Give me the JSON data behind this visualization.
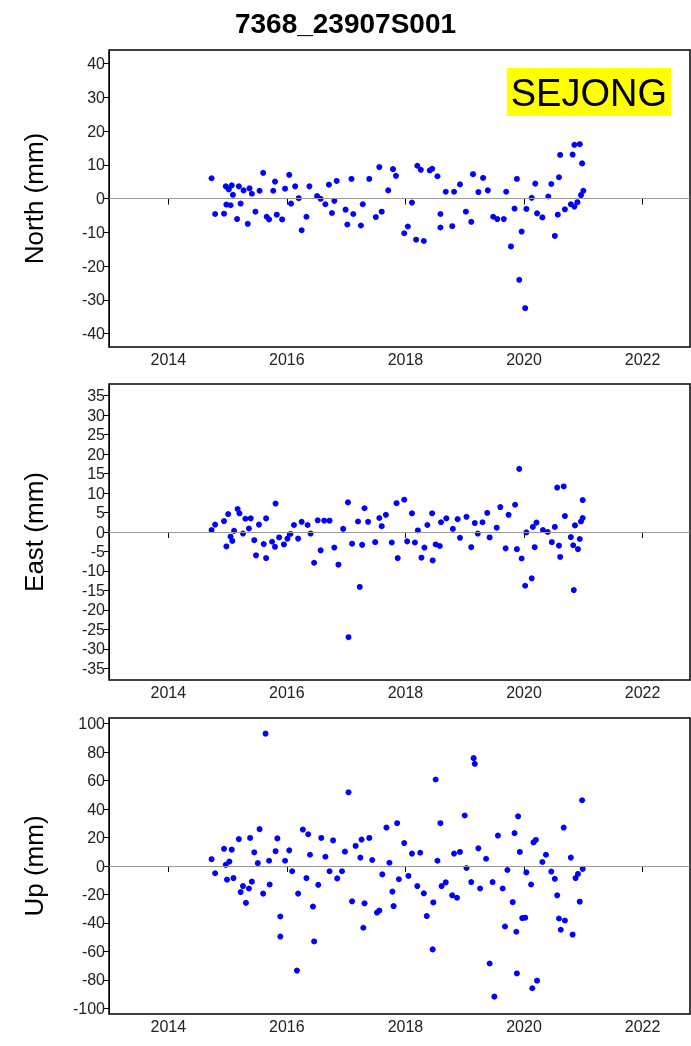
{
  "chart_data": [
    {
      "type": "scatter",
      "title": "7368_23907S001",
      "ylabel": "North (mm)",
      "annotations": [
        "SEJONG"
      ],
      "color": "#0000ff",
      "marker": "circle",
      "grid": false,
      "xlim": [
        2013,
        2022.8
      ],
      "xticks": [
        2014,
        2016,
        2018,
        2020,
        2022
      ],
      "ylim": [
        -44,
        44
      ],
      "yticks": [
        -40,
        -30,
        -20,
        -10,
        0,
        10,
        20,
        30,
        40
      ],
      "ref_lines": [
        {
          "axis": "y",
          "value": 0,
          "color": "#999999"
        }
      ],
      "x": [
        2014.73,
        2014.79,
        2014.94,
        2014.97,
        2014.98,
        2015.02,
        2015.07,
        2015.05,
        2015.09,
        2015.16,
        2015.19,
        2015.22,
        2015.27,
        2015.34,
        2015.37,
        2015.41,
        2015.47,
        2015.54,
        2015.6,
        2015.66,
        2015.7,
        2015.77,
        2015.8,
        2015.83,
        2015.92,
        2015.97,
        2016.04,
        2016.07,
        2016.14,
        2016.2,
        2016.25,
        2016.33,
        2016.38,
        2016.51,
        2016.57,
        2016.65,
        2016.71,
        2016.76,
        2016.8,
        2016.84,
        2016.99,
        2017.02,
        2017.09,
        2017.12,
        2017.25,
        2017.28,
        2017.39,
        2017.5,
        2017.56,
        2017.6,
        2017.71,
        2017.79,
        2017.84,
        2017.98,
        2018.04,
        2018.11,
        2018.18,
        2018.2,
        2018.26,
        2018.31,
        2018.41,
        2018.45,
        2018.54,
        2018.59,
        2018.59,
        2018.68,
        2018.79,
        2018.82,
        2018.92,
        2019.02,
        2019.11,
        2019.14,
        2019.23,
        2019.31,
        2019.39,
        2019.48,
        2019.55,
        2019.66,
        2019.7,
        2019.78,
        2019.84,
        2019.88,
        2019.92,
        2019.96,
        2020.02,
        2020.04,
        2020.13,
        2020.19,
        2020.22,
        2020.31,
        2020.41,
        2020.46,
        2020.52,
        2020.57,
        2020.59,
        2020.61,
        2020.69,
        2020.79,
        2020.82,
        2020.85,
        2020.85,
        2020.9,
        2020.94,
        2020.98,
        2021.0,
        2020.96
      ],
      "values": [
        6.0,
        -4.6,
        -4.5,
        3.6,
        -1.8,
        2.7,
        3.9,
        -2.0,
        1.1,
        -6.1,
        3.6,
        -1.5,
        2.4,
        -7.5,
        3.0,
        1.4,
        -3.9,
        2.3,
        7.6,
        -5.4,
        -6.2,
        2.3,
        5.0,
        -4.8,
        -6.2,
        2.9,
        7.0,
        -1.5,
        3.6,
        0.1,
        -9.4,
        -5.4,
        3.6,
        0.7,
        -0.1,
        -1.7,
        4.1,
        -4.3,
        -0.7,
        5.2,
        -3.3,
        -7.7,
        5.8,
        -4.6,
        -8.0,
        -1.7,
        5.8,
        -5.5,
        9.3,
        -3.9,
        2.4,
        8.7,
        6.7,
        -10.3,
        -8.3,
        -1.2,
        -12.2,
        9.7,
        8.5,
        -12.6,
        8.3,
        8.8,
        6.6,
        -4.6,
        -8.6,
        2.0,
        -8.2,
        2.0,
        4.2,
        -3.9,
        -6.9,
        7.2,
        1.9,
        6.1,
        2.4,
        -5.4,
        -6.1,
        -6.1,
        2.0,
        -14.2,
        -3.0,
        5.8,
        -24.1,
        -9.8,
        -32.5,
        -3.1,
        0.2,
        4.4,
        -4.4,
        -5.6,
        0.6,
        4.3,
        -11.1,
        -4.8,
        6.3,
        12.9,
        -3.2,
        -1.7,
        13.0,
        -2.4,
        15.9,
        -1.1,
        16.1,
        10.4,
        2.3,
        1.0
      ]
    },
    {
      "type": "scatter",
      "ylabel": "East (mm)",
      "color": "#0000ff",
      "marker": "circle",
      "grid": false,
      "xlim": [
        2013,
        2022.8
      ],
      "xticks": [
        2014,
        2016,
        2018,
        2020,
        2022
      ],
      "ylim": [
        -38,
        38
      ],
      "yticks": [
        -35,
        -30,
        -25,
        -20,
        -15,
        -10,
        -5,
        0,
        5,
        10,
        15,
        20,
        25,
        30,
        35
      ],
      "ref_lines": [
        {
          "axis": "y",
          "value": 0,
          "color": "#999999"
        }
      ],
      "x": [
        2014.73,
        2014.79,
        2014.94,
        2014.98,
        2015.01,
        2015.05,
        2015.08,
        2015.11,
        2015.17,
        2015.2,
        2015.26,
        2015.3,
        2015.36,
        2015.39,
        2015.45,
        2015.48,
        2015.53,
        2015.61,
        2015.65,
        2015.65,
        2015.75,
        2015.8,
        2015.81,
        2015.87,
        2015.95,
        2016.01,
        2016.06,
        2016.12,
        2016.19,
        2016.25,
        2016.35,
        2016.4,
        2016.46,
        2016.52,
        2016.57,
        2016.63,
        2016.72,
        2016.8,
        2016.87,
        2016.95,
        2017.03,
        2017.04,
        2017.1,
        2017.2,
        2017.23,
        2017.27,
        2017.31,
        2017.37,
        2017.49,
        2017.56,
        2017.6,
        2017.67,
        2017.77,
        2017.85,
        2017.87,
        2017.98,
        2018.03,
        2018.11,
        2018.16,
        2018.21,
        2018.27,
        2018.32,
        2018.37,
        2018.45,
        2018.46,
        2018.51,
        2018.58,
        2018.6,
        2018.69,
        2018.8,
        2018.88,
        2018.92,
        2019.03,
        2019.11,
        2019.17,
        2019.22,
        2019.3,
        2019.38,
        2019.42,
        2019.54,
        2019.6,
        2019.69,
        2019.74,
        2019.85,
        2019.88,
        2019.92,
        2019.96,
        2020.02,
        2020.04,
        2020.13,
        2020.15,
        2020.18,
        2020.21,
        2020.32,
        2020.4,
        2020.47,
        2020.52,
        2020.56,
        2020.59,
        2020.61,
        2020.67,
        2020.69,
        2020.79,
        2020.83,
        2020.84,
        2020.86,
        2020.91,
        2020.94,
        2020.96,
        2020.99,
        2020.99
      ],
      "values": [
        0.5,
        1.9,
        2.8,
        -3.7,
        4.6,
        -1.2,
        -2.3,
        0.3,
        5.9,
        4.8,
        -0.4,
        3.4,
        0.9,
        3.5,
        -2.1,
        -6.0,
        1.9,
        -3.1,
        3.5,
        -6.7,
        -2.5,
        -3.8,
        7.3,
        -1.4,
        -3.2,
        -1.7,
        -0.5,
        1.8,
        -1.7,
        2.6,
        1.8,
        -0.4,
        -7.9,
        3.0,
        -4.7,
        2.9,
        2.9,
        -4.0,
        -8.4,
        0.8,
        7.6,
        -27.0,
        -3.0,
        2.7,
        -14.1,
        -3.3,
        6.1,
        2.6,
        -2.6,
        3.6,
        1.5,
        4.4,
        -2.7,
        7.4,
        -6.7,
        8.3,
        -2.4,
        4.8,
        -2.7,
        0.4,
        -6.6,
        -4.0,
        1.8,
        4.8,
        -7.3,
        -3.2,
        -3.6,
        2.5,
        3.5,
        0.8,
        3.3,
        -1.5,
        3.9,
        -3.9,
        2.3,
        -0.4,
        2.5,
        4.9,
        -1.4,
        1.1,
        6.4,
        -4.2,
        4.4,
        7.0,
        -4.4,
        16.2,
        -6.8,
        -13.8,
        -0.1,
        -11.9,
        1.3,
        -3.9,
        2.4,
        0.5,
        0.0,
        -2.6,
        1.3,
        11.4,
        -3.5,
        -6.4,
        11.7,
        4.1,
        -1.3,
        -3.4,
        -14.9,
        1.7,
        -4.4,
        -1.8,
        2.7,
        8.2,
        3.6
      ]
    },
    {
      "type": "scatter",
      "ylabel": "Up (mm)",
      "color": "#0000ff",
      "marker": "circle",
      "grid": false,
      "xlim": [
        2013,
        2022.8
      ],
      "xticks": [
        2014,
        2016,
        2018,
        2020,
        2022
      ],
      "ylim": [
        -104,
        104
      ],
      "yticks": [
        -100,
        -80,
        -60,
        -40,
        -20,
        0,
        20,
        40,
        60,
        80,
        100
      ],
      "ref_lines": [
        {
          "axis": "y",
          "value": 0,
          "color": "#999999"
        }
      ],
      "x": [
        2014.73,
        2014.79,
        2014.94,
        2014.97,
        2014.99,
        2015.03,
        2015.07,
        2015.1,
        2015.19,
        2015.22,
        2015.26,
        2015.31,
        2015.36,
        2015.38,
        2015.41,
        2015.45,
        2015.51,
        2015.54,
        2015.6,
        2015.64,
        2015.7,
        2015.71,
        2015.81,
        2015.84,
        2015.89,
        2015.89,
        2015.97,
        2016.04,
        2016.09,
        2016.17,
        2016.19,
        2016.27,
        2016.33,
        2016.36,
        2016.39,
        2016.44,
        2016.46,
        2016.53,
        2016.58,
        2016.65,
        2016.72,
        2016.78,
        2016.85,
        2016.93,
        2016.98,
        2017.04,
        2017.1,
        2017.16,
        2017.24,
        2017.26,
        2017.29,
        2017.31,
        2017.39,
        2017.44,
        2017.52,
        2017.56,
        2017.61,
        2017.68,
        2017.73,
        2017.78,
        2017.8,
        2017.86,
        2017.89,
        2017.98,
        2018.05,
        2018.11,
        2018.2,
        2018.25,
        2018.31,
        2018.36,
        2018.46,
        2018.47,
        2018.51,
        2018.54,
        2018.59,
        2018.61,
        2018.68,
        2018.79,
        2018.82,
        2018.87,
        2018.92,
        2019.0,
        2019.03,
        2019.11,
        2019.15,
        2019.17,
        2019.23,
        2019.26,
        2019.36,
        2019.42,
        2019.47,
        2019.5,
        2019.56,
        2019.64,
        2019.68,
        2019.72,
        2019.81,
        2019.84,
        2019.87,
        2019.88,
        2019.9,
        2019.93,
        2019.97,
        2020.02,
        2020.04,
        2020.12,
        2020.14,
        2020.16,
        2020.2,
        2020.22,
        2020.31,
        2020.37,
        2020.46,
        2020.52,
        2020.56,
        2020.59,
        2020.62,
        2020.67,
        2020.69,
        2020.79,
        2020.82,
        2020.87,
        2020.91,
        2020.94,
        2020.98,
        2020.99
      ],
      "values": [
        4.8,
        -5.1,
        12.1,
        0.8,
        -9.6,
        3.1,
        11.5,
        -8.5,
        18.9,
        -18.3,
        -14.1,
        -25.9,
        -15.8,
        19.7,
        -11.0,
        9.6,
        2.0,
        25.9,
        -19.4,
        93.0,
        3.7,
        -13.0,
        10.4,
        19.4,
        -35.5,
        -49.6,
        3.7,
        11.0,
        -3.7,
        -73.5,
        -19.4,
        25.6,
        -8.5,
        22.3,
        7.9,
        -28.5,
        -53.0,
        -13.2,
        19.7,
        6.5,
        -3.7,
        18.0,
        -8.7,
        -3.7,
        10.1,
        51.8,
        -24.8,
        14.1,
        5.9,
        18.6,
        -43.4,
        -26.2,
        19.7,
        4.2,
        -32.7,
        -31.3,
        -5.9,
        27.0,
        2.3,
        -18.0,
        -28.2,
        30.1,
        -9.3,
        16.1,
        -7.0,
        8.7,
        -14.1,
        9.3,
        -19.2,
        -35.2,
        -58.6,
        -25.6,
        60.8,
        3.7,
        30.1,
        -14.1,
        -11.5,
        -20.6,
        8.7,
        -22.3,
        9.9,
        35.5,
        -1.4,
        -11.3,
        75.8,
        71.8,
        12.4,
        -15.8,
        5.1,
        -68.5,
        -11.3,
        -91.8,
        21.4,
        -15.8,
        -42.5,
        -2.8,
        -25.4,
        23.1,
        -46.2,
        -75.5,
        34.9,
        9.9,
        -36.6,
        -36.3,
        -4.5,
        -13.0,
        -85.9,
        16.6,
        18.3,
        -80.6,
        2.8,
        7.9,
        -3.9,
        -9.0,
        -20.6,
        -36.9,
        -44.8,
        27.0,
        -38.3,
        5.9,
        -48.2,
        -8.5,
        -5.6,
        -25.1,
        46.2,
        -2.0
      ]
    }
  ]
}
